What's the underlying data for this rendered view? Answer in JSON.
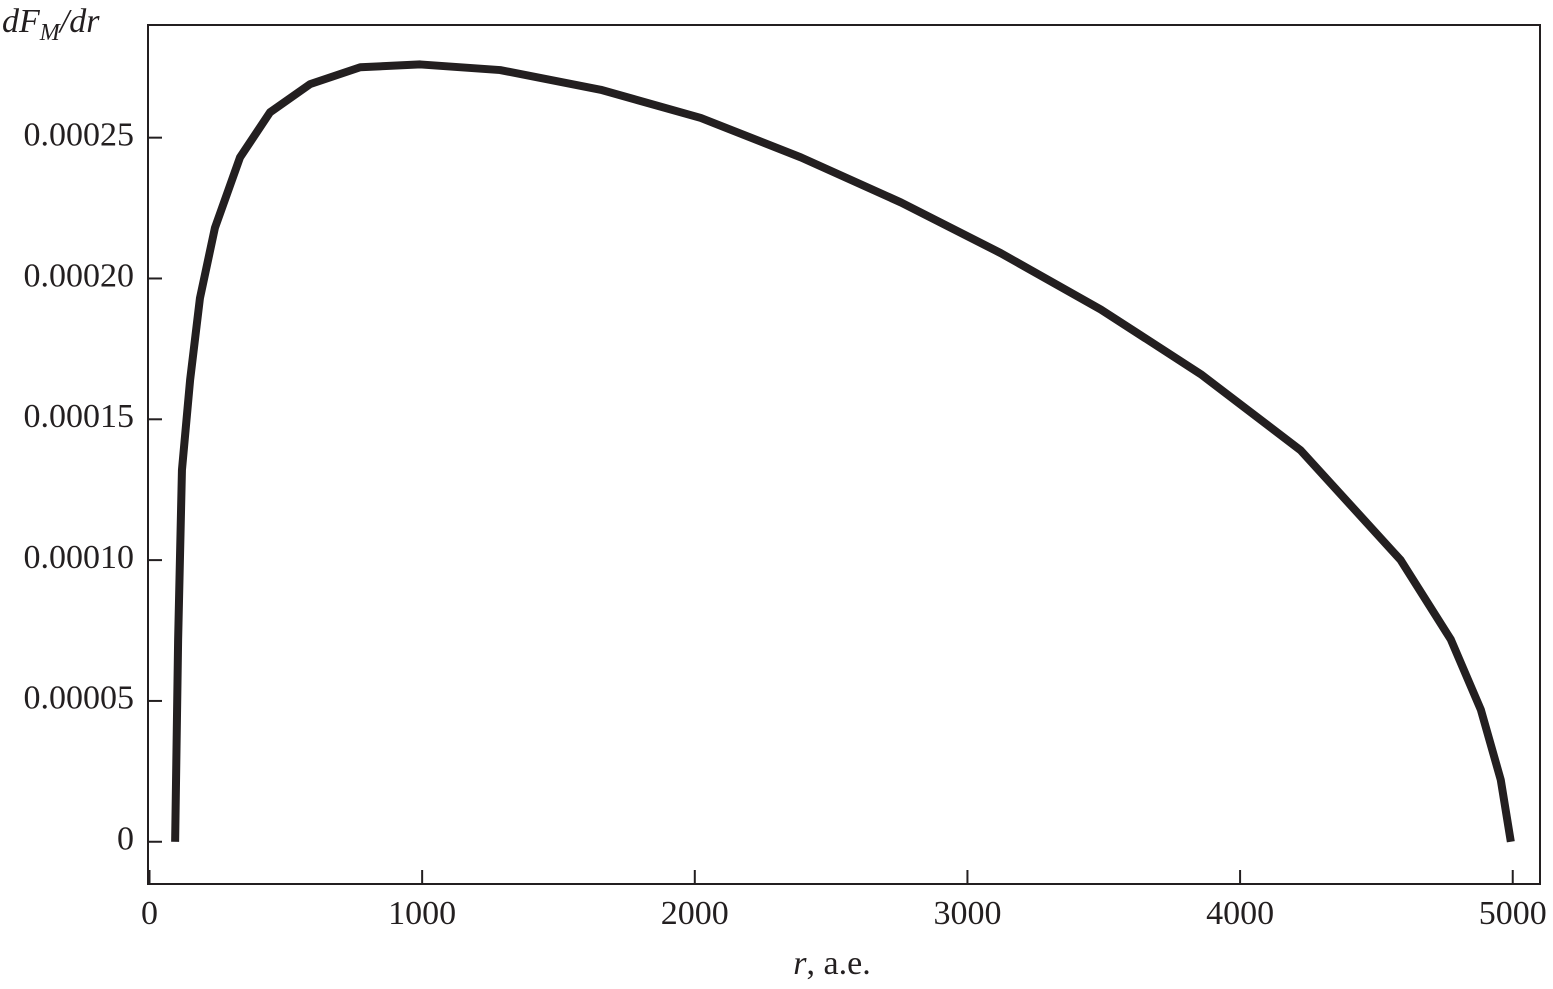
{
  "chart_data": {
    "type": "line",
    "ylabel_parts": [
      "dF",
      "M",
      "/dr"
    ],
    "xlabel_parts": [
      "r",
      ", a.e."
    ],
    "xlim": [
      0,
      5100
    ],
    "ylim": [
      -1.5e-05,
      0.00029
    ],
    "xticks": [
      0,
      1000,
      2000,
      3000,
      4000,
      5000
    ],
    "yticks": [
      0,
      5e-05,
      {
        "value": 0.0001,
        "label": "0.00010"
      },
      0.00015,
      {
        "value": 0.0002,
        "label": "0.00020"
      },
      0.00025
    ],
    "series": [
      {
        "color": "#231f20",
        "x": [
          94,
          105,
          119,
          149,
          185,
          240,
          332,
          442,
          589,
          773,
          993,
          1286,
          1655,
          2022,
          2389,
          2756,
          3122,
          3489,
          3856,
          4222,
          4589,
          4773,
          4883,
          4956,
          4993
        ],
        "values": [
          0,
          7.18e-05,
          0.000132,
          0.000164,
          0.000193,
          0.000218,
          0.000243,
          0.000259,
          0.000269,
          0.000275,
          0.000276,
          0.000274,
          0.000267,
          0.000257,
          0.000243,
          0.000227,
          0.000209,
          0.000189,
          0.000166,
          0.000139,
          0.0001,
          7.18e-05,
          4.69e-05,
          2.2e-05,
          0
        ]
      }
    ]
  }
}
